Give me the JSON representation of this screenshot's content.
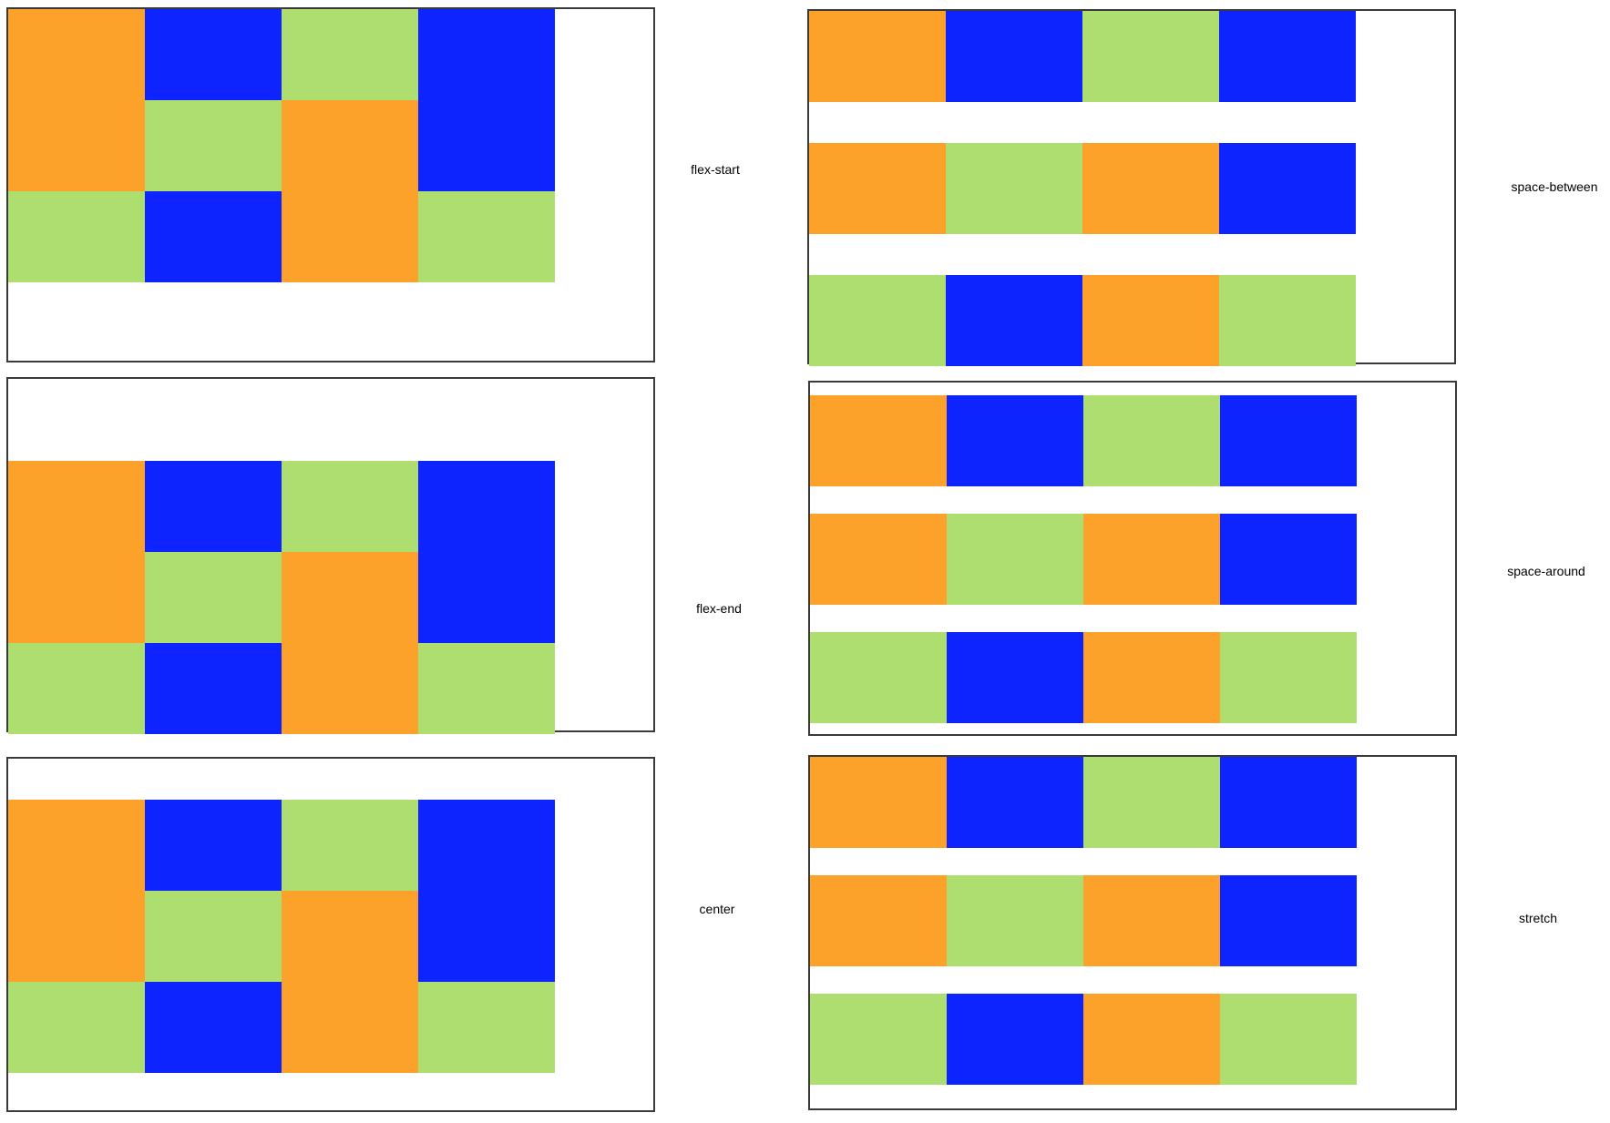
{
  "colors": {
    "orange": "#FCA22A",
    "blue": "#0D24FF",
    "green": "#ADDE6F",
    "border": "#3A3A3A"
  },
  "panels": [
    {
      "caption": "flex-start",
      "layout": "grid",
      "cells": [
        {
          "col": 0,
          "row": 0,
          "span": 2,
          "color": "orange"
        },
        {
          "col": 0,
          "row": 2,
          "span": 1,
          "color": "green"
        },
        {
          "col": 1,
          "row": 0,
          "span": 1,
          "color": "blue"
        },
        {
          "col": 1,
          "row": 1,
          "span": 1,
          "color": "green"
        },
        {
          "col": 1,
          "row": 2,
          "span": 1,
          "color": "blue"
        },
        {
          "col": 2,
          "row": 0,
          "span": 1,
          "color": "green"
        },
        {
          "col": 2,
          "row": 1,
          "span": 2,
          "color": "orange"
        },
        {
          "col": 3,
          "row": 0,
          "span": 2,
          "color": "blue"
        },
        {
          "col": 3,
          "row": 2,
          "span": 1,
          "color": "green"
        }
      ]
    },
    {
      "caption": "flex-end",
      "layout": "grid",
      "cells": [
        {
          "col": 0,
          "row": 0,
          "span": 2,
          "color": "orange"
        },
        {
          "col": 0,
          "row": 2,
          "span": 1,
          "color": "green"
        },
        {
          "col": 1,
          "row": 0,
          "span": 1,
          "color": "blue"
        },
        {
          "col": 1,
          "row": 1,
          "span": 1,
          "color": "green"
        },
        {
          "col": 1,
          "row": 2,
          "span": 1,
          "color": "blue"
        },
        {
          "col": 2,
          "row": 0,
          "span": 1,
          "color": "green"
        },
        {
          "col": 2,
          "row": 1,
          "span": 2,
          "color": "orange"
        },
        {
          "col": 3,
          "row": 0,
          "span": 2,
          "color": "blue"
        },
        {
          "col": 3,
          "row": 2,
          "span": 1,
          "color": "green"
        }
      ]
    },
    {
      "caption": "center",
      "layout": "grid",
      "cells": [
        {
          "col": 0,
          "row": 0,
          "span": 2,
          "color": "orange"
        },
        {
          "col": 0,
          "row": 2,
          "span": 1,
          "color": "green"
        },
        {
          "col": 1,
          "row": 0,
          "span": 1,
          "color": "blue"
        },
        {
          "col": 1,
          "row": 1,
          "span": 1,
          "color": "green"
        },
        {
          "col": 1,
          "row": 2,
          "span": 1,
          "color": "blue"
        },
        {
          "col": 2,
          "row": 0,
          "span": 1,
          "color": "green"
        },
        {
          "col": 2,
          "row": 1,
          "span": 2,
          "color": "orange"
        },
        {
          "col": 3,
          "row": 0,
          "span": 2,
          "color": "blue"
        },
        {
          "col": 3,
          "row": 2,
          "span": 1,
          "color": "green"
        }
      ]
    },
    {
      "caption": "space-between",
      "layout": "rows",
      "rows": [
        [
          "orange",
          "blue",
          "green",
          "blue"
        ],
        [
          "orange",
          "green",
          "orange",
          "blue"
        ],
        [
          "green",
          "blue",
          "orange",
          "green"
        ]
      ]
    },
    {
      "caption": "space-around",
      "layout": "rows",
      "rows": [
        [
          "orange",
          "blue",
          "green",
          "blue"
        ],
        [
          "orange",
          "green",
          "orange",
          "blue"
        ],
        [
          "green",
          "blue",
          "orange",
          "green"
        ]
      ]
    },
    {
      "caption": "stretch",
      "layout": "rows",
      "rows": [
        [
          "orange",
          "blue",
          "green",
          "blue"
        ],
        [
          "orange",
          "green",
          "orange",
          "blue"
        ],
        [
          "green",
          "blue",
          "orange",
          "green"
        ]
      ]
    }
  ]
}
